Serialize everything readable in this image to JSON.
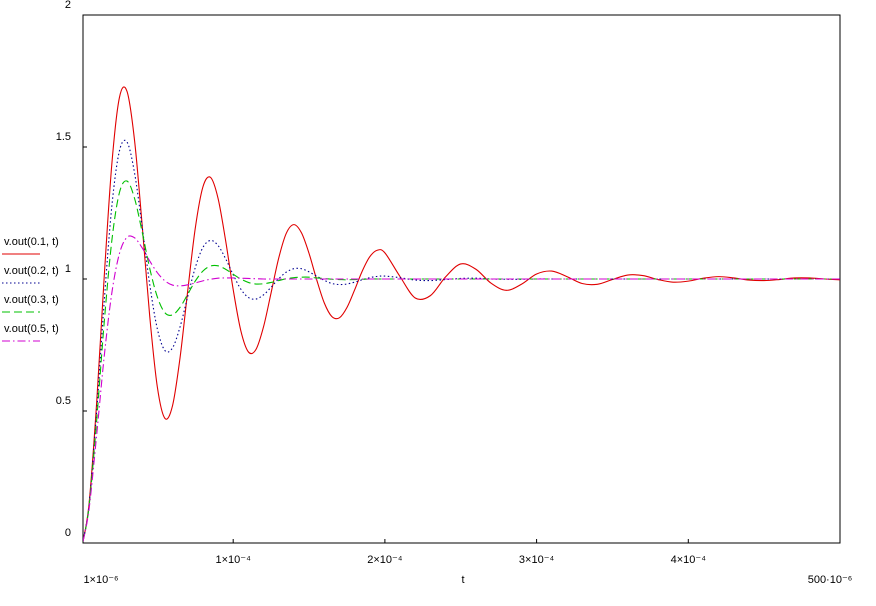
{
  "chart_data": {
    "type": "line",
    "x_label": "t",
    "x": [
      1e-06,
      5e-06,
      1e-05,
      1.5e-05,
      2e-05,
      2.5e-05,
      3e-05,
      3.5e-05,
      4e-05,
      4.5e-05,
      5e-05,
      5.5e-05,
      6e-05,
      6.5e-05,
      7e-05,
      7.5e-05,
      8e-05,
      8.5e-05,
      9e-05,
      9.5e-05,
      0.0001,
      0.000105,
      0.00011,
      0.000115,
      0.00012,
      0.000125,
      0.00013,
      0.000135,
      0.00014,
      0.000145,
      0.00015,
      0.000155,
      0.00016,
      0.000165,
      0.00017,
      0.000175,
      0.00018,
      0.000185,
      0.00019,
      0.000195,
      0.0002,
      0.00021,
      0.00022,
      0.00023,
      0.00024,
      0.00025,
      0.00026,
      0.00027,
      0.00028,
      0.00029,
      0.0003,
      0.00031,
      0.00032,
      0.00033,
      0.00034,
      0.00035,
      0.00036,
      0.00037,
      0.00038,
      0.00039,
      0.0004,
      0.00041,
      0.00042,
      0.00043,
      0.00044,
      0.00045,
      0.00046,
      0.00047,
      0.00048,
      0.00049,
      0.0005
    ],
    "series": [
      {
        "name": "v.out(0.1, t)",
        "color": "#e00000",
        "style": "solid",
        "values": [
          0.006,
          0.149,
          0.531,
          1.01,
          1.435,
          1.687,
          1.711,
          1.524,
          1.204,
          0.858,
          0.591,
          0.472,
          0.52,
          0.703,
          0.954,
          1.192,
          1.348,
          1.385,
          1.306,
          1.146,
          0.96,
          0.805,
          0.724,
          0.733,
          0.819,
          0.948,
          1.079,
          1.173,
          1.206,
          1.175,
          1.097,
          0.998,
          0.91,
          0.858,
          0.853,
          0.892,
          0.958,
          1.029,
          1.084,
          1.109,
          1.099,
          1.009,
          0.928,
          0.937,
          1.008,
          1.057,
          1.037,
          0.984,
          0.957,
          0.98,
          1.019,
          1.03,
          1.009,
          0.983,
          0.98,
          0.998,
          1.015,
          1.013,
          0.998,
          0.988,
          0.992,
          1.003,
          1.009,
          1.004,
          0.996,
          0.994,
          0.998,
          1.004,
          1.004,
          1.0,
          0.997
        ]
      },
      {
        "name": "v.out(0.2, t)",
        "color": "#000090",
        "style": "dotted",
        "values": [
          0.006,
          0.144,
          0.496,
          0.916,
          1.275,
          1.485,
          1.519,
          1.401,
          1.197,
          0.979,
          0.811,
          0.729,
          0.739,
          0.819,
          0.933,
          1.043,
          1.119,
          1.146,
          1.127,
          1.077,
          1.016,
          0.962,
          0.93,
          0.924,
          0.94,
          0.969,
          1.001,
          1.026,
          1.039,
          1.039,
          1.027,
          1.011,
          0.995,
          0.983,
          0.979,
          0.981,
          0.988,
          0.997,
          1.005,
          1.01,
          1.011,
          1.005,
          0.996,
          0.994,
          0.998,
          1.002,
          1.003,
          1.0,
          0.999,
          0.999,
          1,
          1,
          1,
          1,
          1,
          1,
          1,
          1,
          1,
          1,
          1,
          1,
          1,
          1,
          1,
          1,
          1,
          1,
          1,
          1,
          1
        ]
      },
      {
        "name": "v.out(0.3, t)",
        "color": "#00c000",
        "style": "dashed",
        "values": [
          0.006,
          0.139,
          0.464,
          0.837,
          1.145,
          1.327,
          1.371,
          1.305,
          1.178,
          1.04,
          0.932,
          0.872,
          0.864,
          0.893,
          0.942,
          0.992,
          1.03,
          1.049,
          1.05,
          1.037,
          1.018,
          1.0,
          0.987,
          0.981,
          0.982,
          0.987,
          0.994,
          1.001,
          1.005,
          1.007,
          1.007,
          1.004,
          1.002,
          0.999,
          0.998,
          0.997,
          0.998,
          0.999,
          1,
          1,
          1,
          1,
          1,
          1,
          1,
          1,
          1,
          1,
          1,
          1,
          1,
          1,
          1,
          1,
          1,
          1,
          1,
          1,
          1,
          1,
          1,
          1,
          1,
          1,
          1,
          1,
          1,
          1,
          1,
          1,
          1
        ]
      },
      {
        "name": "v.out(0.5, t)",
        "color": "#d000d0",
        "style": "dashdot",
        "values": [
          0.006,
          0.129,
          0.409,
          0.708,
          0.947,
          1.096,
          1.158,
          1.156,
          1.118,
          1.068,
          1.024,
          0.993,
          0.977,
          0.974,
          0.978,
          0.985,
          0.993,
          0.999,
          1.003,
          1.004,
          1.004,
          1.003,
          1.002,
          1.001,
          1.0,
          1,
          1,
          1,
          1,
          1,
          1,
          1,
          1,
          1,
          1,
          1,
          1,
          1,
          1,
          1,
          1,
          1,
          1,
          1,
          1,
          1,
          1,
          1,
          1,
          1,
          1,
          1,
          1,
          1,
          1,
          1,
          1,
          1,
          1,
          1,
          1,
          1,
          1,
          1,
          1,
          1,
          1,
          1,
          1,
          1,
          1
        ]
      }
    ],
    "xlim": [
      1e-06,
      0.0005
    ],
    "xticks": [
      {
        "value": 1e-06,
        "label": "1×10⁻⁶"
      },
      {
        "value": 0.0001,
        "label": "1×10⁻⁴"
      },
      {
        "value": 0.0002,
        "label": "2×10⁻⁴"
      },
      {
        "value": 0.0003,
        "label": "3×10⁻⁴"
      },
      {
        "value": 0.0004,
        "label": "4×10⁻⁴"
      },
      {
        "value": 0.0005,
        "label": "500·10⁻⁶"
      }
    ],
    "ylim": [
      0,
      2
    ],
    "yticks": [
      0,
      0.5,
      1,
      1.5,
      2
    ],
    "grid": false,
    "legend": "left"
  }
}
